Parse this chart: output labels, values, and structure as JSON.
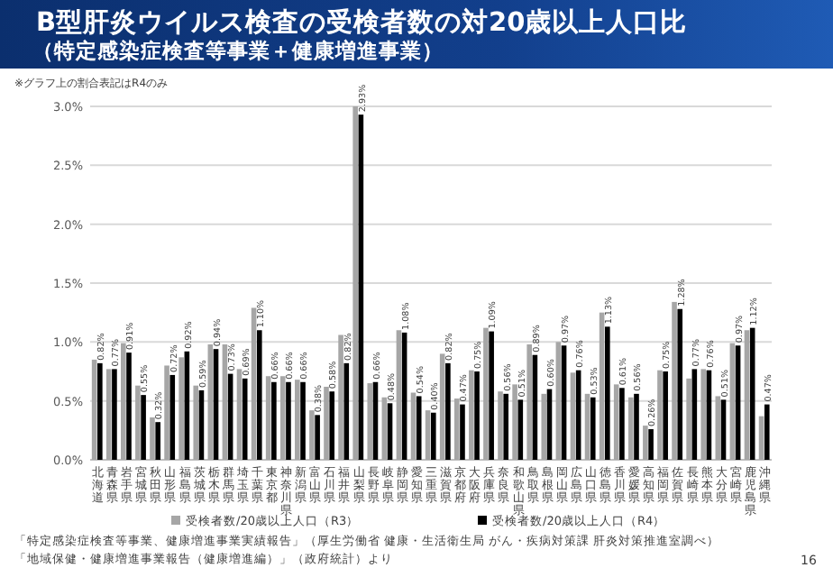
{
  "chart_data": {
    "type": "bar",
    "title": "B型肝炎ウイルス検査の受検者数の対20歳以上人口比",
    "subtitle": "（特定感染症検査等事業＋健康増進事業）",
    "annotations": [
      "※グラフ上の割合表記はR4のみ",
      "「特定感染症検査等事業、健康増進事業実績報告」（厚生労働省 健康・生活衛生局 がん・疾病対策課 肝炎対策推進室調べ）",
      "「地域保健・健康増進事業報告（健康増進編）」（政府統計）より",
      "16"
    ],
    "categories": [
      "北海道",
      "青森県",
      "岩手県",
      "宮城県",
      "秋田県",
      "山形県",
      "福島県",
      "茨城県",
      "栃木県",
      "群馬県",
      "埼玉県",
      "千葉県",
      "東京都",
      "神奈川県",
      "新潟県",
      "富山県",
      "石川県",
      "福井県",
      "山梨県",
      "長野県",
      "岐阜県",
      "静岡県",
      "愛知県",
      "三重県",
      "滋賀県",
      "京都府",
      "大阪府",
      "兵庫県",
      "奈良県",
      "和歌山県",
      "鳥取県",
      "島根県",
      "岡山県",
      "広島県",
      "山口県",
      "徳島県",
      "香川県",
      "愛媛県",
      "高知県",
      "福岡県",
      "佐賀県",
      "長崎県",
      "熊本県",
      "大分県",
      "宮崎県",
      "鹿児島県",
      "沖縄県"
    ],
    "series": [
      {
        "name": "受検者数/20歳以上人口（R3）",
        "color": "#a6a6a6",
        "values": [
          0.85,
          0.77,
          0.99,
          0.63,
          0.36,
          0.8,
          0.87,
          0.63,
          0.98,
          0.98,
          0.77,
          1.29,
          0.71,
          0.71,
          0.68,
          0.42,
          0.62,
          1.06,
          3.0,
          0.65,
          0.53,
          1.1,
          0.57,
          0.42,
          0.9,
          0.52,
          0.76,
          1.12,
          0.58,
          0.64,
          0.98,
          0.56,
          1.0,
          0.74,
          0.56,
          1.25,
          0.64,
          0.53,
          0.29,
          0.76,
          1.34,
          0.69,
          0.77,
          0.54,
          0.99,
          1.1,
          0.37
        ]
      },
      {
        "name": "受検者数/20歳以上人口（R4）",
        "color": "#000000",
        "values": [
          0.82,
          0.77,
          0.91,
          0.55,
          0.32,
          0.72,
          0.92,
          0.59,
          0.94,
          0.73,
          0.69,
          1.1,
          0.66,
          0.66,
          0.66,
          0.38,
          0.58,
          0.82,
          2.93,
          0.66,
          0.48,
          1.08,
          0.54,
          0.4,
          0.82,
          0.47,
          0.75,
          1.09,
          0.56,
          0.51,
          0.89,
          0.6,
          0.97,
          0.76,
          0.53,
          1.13,
          0.61,
          0.56,
          0.26,
          0.75,
          1.28,
          0.77,
          0.76,
          0.51,
          0.97,
          1.12,
          0.47
        ],
        "value_labels": [
          "0.82%",
          "0.77%",
          "0.91%",
          "0.55%",
          "0.32%",
          "0.72%",
          "0.92%",
          "0.59%",
          "0.94%",
          "0.73%",
          "0.69%",
          "1.10%",
          "0.66%",
          "0.66%",
          "0.66%",
          "0.38%",
          "0.58%",
          "0.82%",
          "2.93%",
          "0.66%",
          "0.48%",
          "1.08%",
          "0.54%",
          "0.40%",
          "0.82%",
          "0.47%",
          "0.75%",
          "1.09%",
          "0.56%",
          "0.51%",
          "0.89%",
          "0.60%",
          "0.97%",
          "0.76%",
          "0.53%",
          "1.13%",
          "0.61%",
          "0.56%",
          "0.26%",
          "0.75%",
          "1.28%",
          "0.77%",
          "0.76%",
          "0.51%",
          "0.97%",
          "1.12%",
          "0.47%"
        ]
      }
    ],
    "ylim": [
      0,
      3.0
    ],
    "yticks": [
      {
        "value": 0,
        "label": "0.0%"
      },
      {
        "value": 0.5,
        "label": "0.5%"
      },
      {
        "value": 1.0,
        "label": "1.0%"
      },
      {
        "value": 1.5,
        "label": "1.5%"
      },
      {
        "value": 2.0,
        "label": "2.0%"
      },
      {
        "value": 2.5,
        "label": "2.5%"
      },
      {
        "value": 3.0,
        "label": "3.0%"
      }
    ],
    "grid": "y",
    "legend": "bottom"
  }
}
